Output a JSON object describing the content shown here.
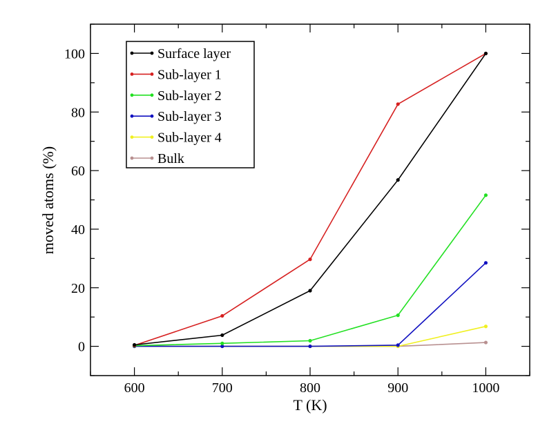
{
  "chart_data": {
    "type": "line",
    "title": "",
    "xlabel": "T (K)",
    "ylabel": "moved atoms (%)",
    "xlim": [
      550,
      1050
    ],
    "ylim": [
      -10,
      110
    ],
    "x": [
      600,
      700,
      800,
      900,
      1000
    ],
    "xticks": [
      600,
      700,
      800,
      900,
      1000
    ],
    "yticks": [
      0,
      20,
      40,
      60,
      80,
      100
    ],
    "grid": false,
    "legend_position": "top-left",
    "series": [
      {
        "name": "Surface layer",
        "color": "#000000",
        "values": [
          0.5,
          3.8,
          19.0,
          56.8,
          100
        ]
      },
      {
        "name": "Sub-layer 1",
        "color": "#d62020",
        "values": [
          0.3,
          10.4,
          29.7,
          82.7,
          100
        ]
      },
      {
        "name": "Sub-layer 2",
        "color": "#22e022",
        "values": [
          0.2,
          1.0,
          1.9,
          10.6,
          51.6
        ]
      },
      {
        "name": "Sub-layer 3",
        "color": "#1010c0",
        "values": [
          0.0,
          0.0,
          0.0,
          0.4,
          28.5
        ]
      },
      {
        "name": "Sub-layer 4",
        "color": "#f0f020",
        "values": [
          0.0,
          0.0,
          0.0,
          0.0,
          6.8
        ]
      },
      {
        "name": "Bulk",
        "color": "#b89090",
        "values": [
          0.0,
          0.0,
          0.0,
          0.0,
          1.3
        ]
      }
    ]
  }
}
